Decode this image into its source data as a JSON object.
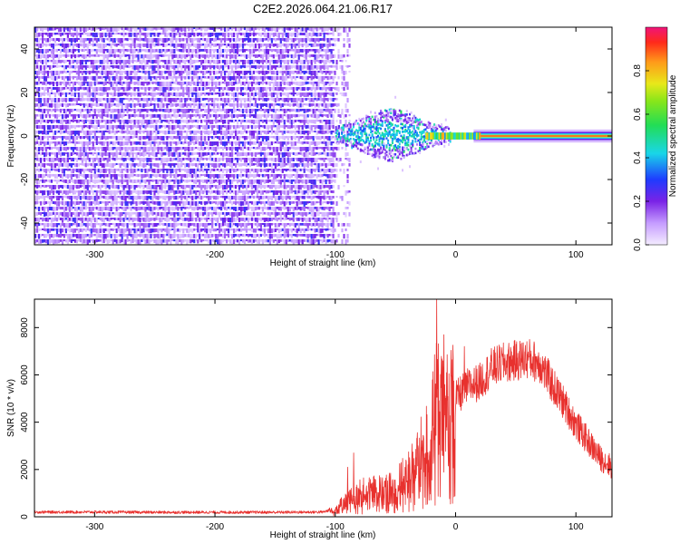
{
  "title": "C2E2.2026.064.21.06.R17",
  "colors": {
    "snr_line": "#e8312e",
    "axis": "#000000",
    "noise_purple": "#7a22e6",
    "noise_light": "#d8b8ff",
    "signal_cyan": "#19d6e8",
    "signal_blue": "#1e3cff",
    "signal_red": "#e6142a"
  },
  "chart_data": [
    {
      "type": "heatmap",
      "title": "C2E2.2026.064.21.06.R17",
      "xlabel": "Height of straight line (km)",
      "ylabel": "Frequency (Hz)",
      "xlim": [
        -350,
        130
      ],
      "ylim": [
        -50,
        50
      ],
      "x_ticks": [
        -300,
        -200,
        -100,
        0,
        100
      ],
      "y_ticks": [
        -40,
        -20,
        0,
        20,
        40
      ],
      "regions": [
        {
          "name": "broadband noise",
          "x_range": [
            -350,
            -88
          ],
          "y_range": [
            -50,
            50
          ],
          "amplitude": [
            0.05,
            0.3
          ]
        },
        {
          "name": "signal cluster",
          "x_range": [
            -100,
            -5
          ],
          "y_range": [
            -12,
            12
          ],
          "amplitude": [
            0.15,
            0.55
          ]
        },
        {
          "name": "narrow carrier",
          "x_range": [
            -5,
            130
          ],
          "y_range": [
            -1.5,
            1.5
          ],
          "amplitude": [
            0.3,
            0.95
          ]
        }
      ],
      "colorbar": {
        "label": "Normalized spectral amplitude",
        "range": [
          0.0,
          1.0
        ],
        "ticks": [
          0.0,
          0.2,
          0.4,
          0.6,
          0.8
        ]
      }
    },
    {
      "type": "line",
      "title": "",
      "xlabel": "Height of straight line (km)",
      "ylabel": "SNR (10 * v/v)",
      "xlim": [
        -350,
        130
      ],
      "ylim": [
        0,
        9200
      ],
      "x_ticks": [
        -300,
        -200,
        -100,
        0,
        100
      ],
      "y_ticks": [
        0,
        2000,
        4000,
        6000,
        8000
      ],
      "series": [
        {
          "name": "SNR",
          "x": [
            -350,
            -300,
            -250,
            -200,
            -150,
            -110,
            -100,
            -90,
            -80,
            -70,
            -60,
            -50,
            -40,
            -30,
            -20,
            -15,
            -10,
            -5,
            0,
            10,
            20,
            30,
            40,
            50,
            60,
            70,
            80,
            90,
            100,
            110,
            120,
            130
          ],
          "y": [
            200,
            200,
            190,
            190,
            190,
            200,
            350,
            700,
            1000,
            1200,
            1100,
            1300,
            1800,
            2600,
            3600,
            5400,
            4200,
            4800,
            5000,
            5500,
            5700,
            6300,
            6500,
            6600,
            6700,
            6500,
            5600,
            4800,
            3900,
            3200,
            2500,
            2100
          ]
        }
      ],
      "spikes": [
        {
          "x": -90,
          "y": 2100
        },
        {
          "x": -85,
          "y": 2700
        },
        {
          "x": -16,
          "y": 9200
        },
        {
          "x": -10,
          "y": 7700
        },
        {
          "x": 7,
          "y": 7200
        }
      ]
    }
  ]
}
